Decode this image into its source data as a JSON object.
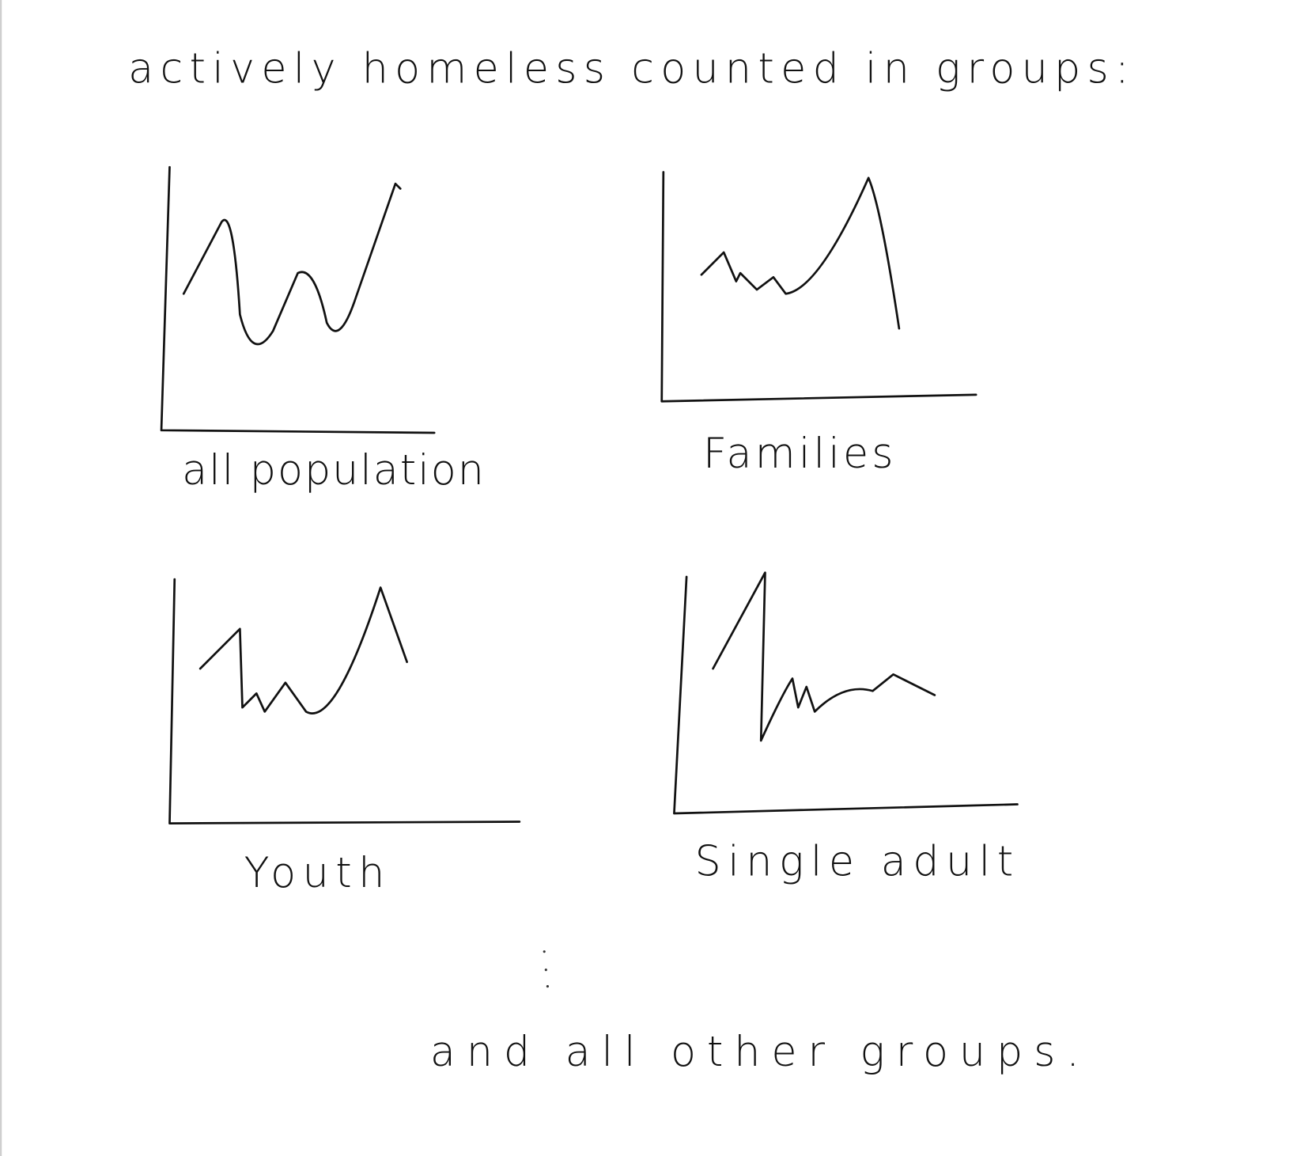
{
  "header": {
    "title": "actively homeless counted in groups:"
  },
  "panels": [
    {
      "label": "all population"
    },
    {
      "label": "Families"
    },
    {
      "label": "Youth"
    },
    {
      "label": "Single adult"
    }
  ],
  "footer": {
    "text": "and all other groups."
  }
}
